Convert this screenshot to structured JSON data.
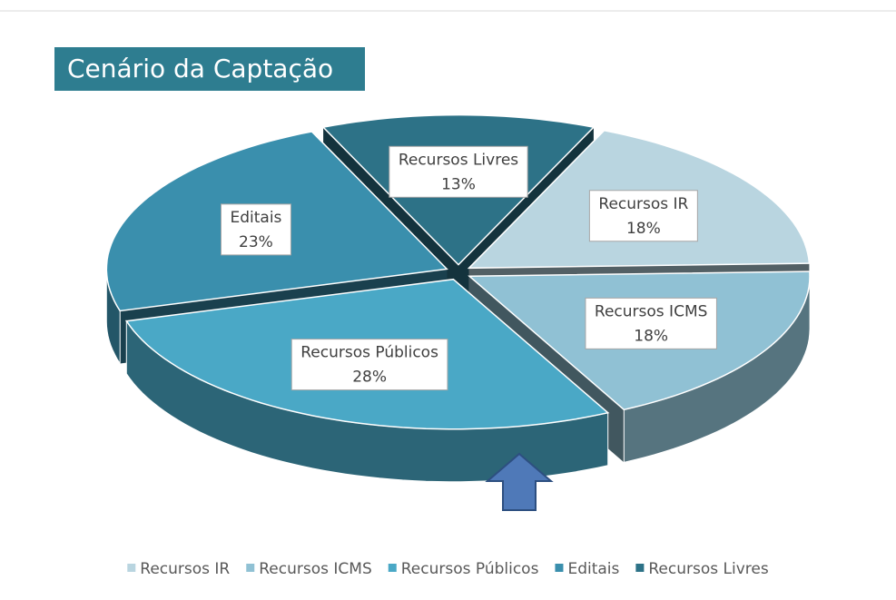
{
  "chart_data": {
    "type": "pie",
    "title": "Cenário da Captação",
    "categories": [
      "Recursos IR",
      "Recursos ICMS",
      "Recursos Públicos",
      "Editais",
      "Recursos Livres"
    ],
    "values": [
      18,
      18,
      28,
      23,
      13
    ],
    "value_labels": [
      "18%",
      "18%",
      "28%",
      "23%",
      "13%"
    ],
    "colors": [
      "#b9d5e0",
      "#90c1d4",
      "#4aa8c6",
      "#3a8fad",
      "#2d7287"
    ],
    "legend": "bottom"
  }
}
